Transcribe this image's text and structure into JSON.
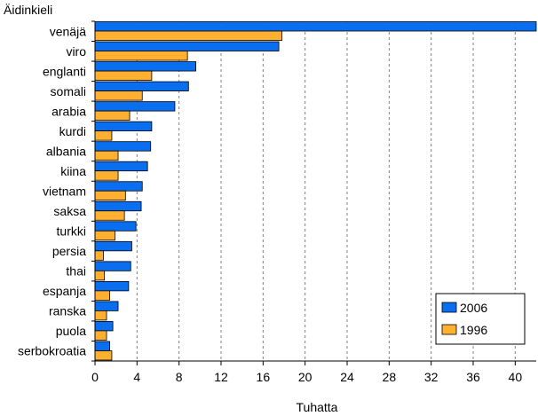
{
  "chart_data": {
    "type": "bar",
    "orientation": "horizontal",
    "title": "Äidinkieli",
    "xlabel": "Tuhatta",
    "ylabel": "",
    "xlim": [
      0,
      42
    ],
    "xticks": [
      0,
      4,
      8,
      12,
      16,
      20,
      24,
      28,
      32,
      36,
      40
    ],
    "grid": "vertical-dashed",
    "legend_position": "bottom-right",
    "categories": [
      "venäjä",
      "viro",
      "englanti",
      "somali",
      "arabia",
      "kurdi",
      "albania",
      "kiina",
      "vietnam",
      "saksa",
      "turkki",
      "persia",
      "thai",
      "espanja",
      "ranska",
      "puola",
      "serbokroatia"
    ],
    "series": [
      {
        "name": "2006",
        "color": "#0a6ef0",
        "values": [
          42.1,
          17.5,
          9.6,
          8.9,
          7.6,
          5.4,
          5.3,
          5.0,
          4.5,
          4.4,
          3.9,
          3.5,
          3.4,
          3.2,
          2.2,
          1.7,
          1.4
        ]
      },
      {
        "name": "1996",
        "color": "#ffb030",
        "values": [
          17.8,
          8.8,
          5.4,
          4.5,
          3.3,
          1.6,
          2.2,
          2.2,
          2.9,
          2.8,
          1.9,
          0.8,
          0.9,
          1.4,
          1.1,
          1.1,
          1.6
        ]
      }
    ]
  }
}
